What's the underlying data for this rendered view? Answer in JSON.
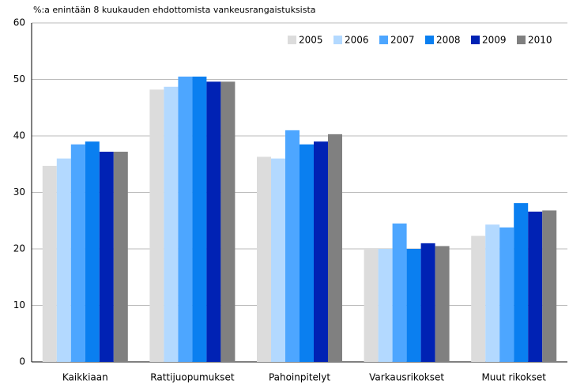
{
  "chart_data": {
    "type": "bar",
    "title": "%:a enintään 8 kuukauden ehdottomista vankeusrangaistuksista",
    "categories": [
      "Kaikkiaan",
      "Rattijuopumukset",
      "Pahoinpitelyt",
      "Varkausrikokset",
      "Muut rikokset"
    ],
    "series": [
      {
        "name": "2005",
        "color": "#dcdcdc",
        "values": [
          34.7,
          48.2,
          36.3,
          20.0,
          22.3
        ]
      },
      {
        "name": "2006",
        "color": "#b3d9ff",
        "values": [
          36.0,
          48.7,
          36.0,
          20.0,
          24.3
        ]
      },
      {
        "name": "2007",
        "color": "#4da6ff",
        "values": [
          38.5,
          50.5,
          41.0,
          24.5,
          23.8
        ]
      },
      {
        "name": "2008",
        "color": "#0a7ff0",
        "values": [
          39.0,
          50.5,
          38.5,
          20.0,
          28.1
        ]
      },
      {
        "name": "2009",
        "color": "#0022b4",
        "values": [
          37.2,
          49.6,
          39.0,
          21.0,
          26.6
        ]
      },
      {
        "name": "2010",
        "color": "#808080",
        "values": [
          37.2,
          49.6,
          40.3,
          20.5,
          26.8
        ]
      }
    ],
    "ylim": [
      0,
      60
    ],
    "yticks": [
      0,
      10,
      20,
      30,
      40,
      50,
      60
    ],
    "grid": true,
    "legend": "top-right"
  }
}
